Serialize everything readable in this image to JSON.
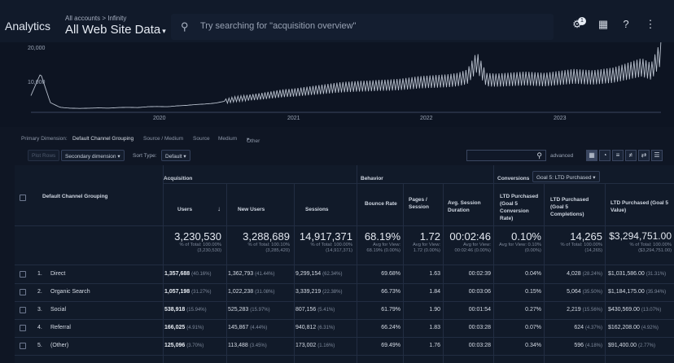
{
  "header": {
    "app_title": "Analytics",
    "breadcrumb": "All accounts > Infinity",
    "view_name": "All Web Site Data",
    "search_placeholder": "Try searching for \"acquisition overview\"",
    "notification_count": "1",
    "icons": [
      "notifications-icon",
      "apps-grid-icon",
      "help-icon",
      "more-vert-icon"
    ]
  },
  "chart_data": {
    "type": "line",
    "x_ticks": [
      "2020",
      "2021",
      "2022",
      "2023"
    ],
    "y_ticks": [
      "20,000",
      "10,000"
    ],
    "ylim": [
      0,
      24000
    ],
    "grid": false,
    "series": [
      {
        "values": [
          6000,
          14000,
          3500,
          1800,
          1500,
          1400,
          1500,
          1600,
          1500,
          1700,
          1800,
          1700,
          2000,
          2100,
          2000,
          2300,
          2500,
          2800,
          3000,
          3300,
          4000,
          4800,
          5200,
          5600,
          6000,
          6500,
          7000,
          7200,
          7600,
          8000,
          8400,
          8800,
          9200,
          9400,
          9600,
          9700,
          9900,
          10000,
          10200,
          10600,
          11000,
          11200,
          11400,
          11600,
          12000,
          13000,
          18500,
          12000,
          11800,
          12000,
          12200,
          12400,
          12200,
          12000,
          12400,
          12800,
          13200,
          13000,
          12800,
          13200,
          13600,
          14500,
          15500,
          16500,
          15000,
          22000
        ]
      }
    ]
  },
  "dimensions": {
    "label": "Primary Dimension:",
    "items": [
      "Default Channel Grouping",
      "Source / Medium",
      "Source",
      "Medium",
      "Other"
    ]
  },
  "toolbar": {
    "plot_rows": "Plot Rows",
    "secondary_dimension": "Secondary dimension",
    "sort_type_label": "Sort Type:",
    "sort_type_value": "Default",
    "advanced": "advanced",
    "view_icons": [
      "data-table-icon",
      "pie-chart-icon",
      "performance-icon",
      "comparison-icon",
      "pivot-icon",
      "term-cloud-icon"
    ]
  },
  "table": {
    "groups": {
      "acquisition": "Acquisition",
      "behavior": "Behavior",
      "conversions": "Conversions",
      "goal_select": "Goal 5: LTD Purchased"
    },
    "dimension_header": "Default Channel Grouping",
    "columns": [
      "Users",
      "New Users",
      "Sessions",
      "Bounce Rate",
      "Pages / Session",
      "Avg. Session Duration",
      "LTD Purchased (Goal 5 Conversion Rate)",
      "LTD Purchased (Goal 5 Completions)",
      "LTD Purchased (Goal 5 Value)"
    ],
    "totals": [
      {
        "value": "3,230,530",
        "sub": "% of Total: 100.00% (3,230,530)"
      },
      {
        "value": "3,288,689",
        "sub": "% of Total: 100.10% (3,285,420)"
      },
      {
        "value": "14,917,371",
        "sub": "% of Total: 100.00% (14,917,371)"
      },
      {
        "value": "68.19%",
        "sub": "Avg for View: 68.19% (0.00%)"
      },
      {
        "value": "1.72",
        "sub": "Avg for View: 1.72 (0.00%)"
      },
      {
        "value": "00:02:46",
        "sub": "Avg for View: 00:02:46 (0.00%)"
      },
      {
        "value": "0.10%",
        "sub": "Avg for View: 0.10% (0.00%)"
      },
      {
        "value": "14,265",
        "sub": "% of Total: 100.00% (14,265)"
      },
      {
        "value": "$3,294,751.00",
        "sub": "% of Total: 100.00% ($3,294,751.00)"
      }
    ],
    "rows": [
      {
        "rank": "1.",
        "channel": "Direct",
        "users": "1,357,688",
        "users_pct": "(40.16%)",
        "new_users": "1,362,793",
        "new_users_pct": "(41.44%)",
        "sessions": "9,299,154",
        "sessions_pct": "(62.34%)",
        "bounce": "69.68%",
        "pages": "1.63",
        "duration": "00:02:39",
        "conv_rate": "0.04%",
        "completions": "4,028",
        "completions_pct": "(28.24%)",
        "value": "$1,031,586.00",
        "value_pct": "(31.31%)"
      },
      {
        "rank": "2.",
        "channel": "Organic Search",
        "users": "1,057,198",
        "users_pct": "(31.27%)",
        "new_users": "1,022,238",
        "new_users_pct": "(31.08%)",
        "sessions": "3,339,219",
        "sessions_pct": "(22.38%)",
        "bounce": "66.73%",
        "pages": "1.84",
        "duration": "00:03:06",
        "conv_rate": "0.15%",
        "completions": "5,064",
        "completions_pct": "(35.50%)",
        "value": "$1,184,175.00",
        "value_pct": "(35.94%)"
      },
      {
        "rank": "3.",
        "channel": "Social",
        "users": "538,918",
        "users_pct": "(15.94%)",
        "new_users": "525,283",
        "new_users_pct": "(15.97%)",
        "sessions": "807,156",
        "sessions_pct": "(5.41%)",
        "bounce": "61.79%",
        "pages": "1.90",
        "duration": "00:01:54",
        "conv_rate": "0.27%",
        "completions": "2,219",
        "completions_pct": "(15.56%)",
        "value": "$430,569.00",
        "value_pct": "(13.07%)"
      },
      {
        "rank": "4.",
        "channel": "Referral",
        "users": "166,025",
        "users_pct": "(4.91%)",
        "new_users": "145,867",
        "new_users_pct": "(4.44%)",
        "sessions": "940,812",
        "sessions_pct": "(6.31%)",
        "bounce": "66.24%",
        "pages": "1.83",
        "duration": "00:03:28",
        "conv_rate": "0.07%",
        "completions": "624",
        "completions_pct": "(4.37%)",
        "value": "$162,208.00",
        "value_pct": "(4.92%)"
      },
      {
        "rank": "5.",
        "channel": "(Other)",
        "users": "125,096",
        "users_pct": "(3.70%)",
        "new_users": "113,488",
        "new_users_pct": "(3.45%)",
        "sessions": "173,002",
        "sessions_pct": "(1.16%)",
        "bounce": "69.49%",
        "pages": "1.76",
        "duration": "00:03:28",
        "conv_rate": "0.34%",
        "completions": "596",
        "completions_pct": "(4.18%)",
        "value": "$91,400.00",
        "value_pct": "(2.77%)"
      }
    ]
  }
}
